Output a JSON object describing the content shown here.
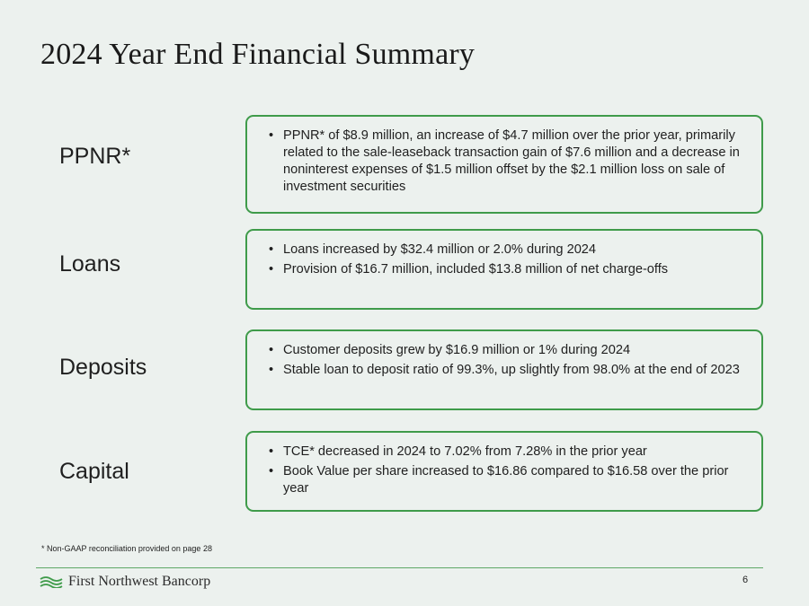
{
  "title": "2024 Year End Financial Summary",
  "sections": [
    {
      "label": "PPNR*",
      "bullets": [
        "PPNR* of $8.9 million, an increase of $4.7 million over the prior year, primarily related to the sale-leaseback transaction gain of $7.6 million and a decrease in noninterest expenses of $1.5 million offset by the $2.1 million loss on sale of investment securities"
      ]
    },
    {
      "label": "Loans",
      "bullets": [
        "Loans increased by $32.4 million or 2.0% during 2024",
        "Provision of $16.7 million, included $13.8 million of net charge-offs"
      ]
    },
    {
      "label": "Deposits",
      "bullets": [
        "Customer deposits grew by $16.9 million or 1% during 2024",
        "Stable loan to deposit ratio of 99.3%, up slightly from 98.0% at the end of 2023"
      ]
    },
    {
      "label": "Capital",
      "bullets": [
        "TCE* decreased in 2024 to 7.02% from 7.28% in the prior year",
        "Book Value per share increased to $16.86 compared to $16.58 over the prior year"
      ]
    }
  ],
  "footnote": "* Non-GAAP reconciliation provided on page 28",
  "footer": {
    "logo_text": "First Northwest Bancorp",
    "logo_icon": "waves-logo-icon",
    "page_number": "6"
  },
  "colors": {
    "accent_green": "#3f9b4a",
    "background": "#ecf1ee"
  }
}
